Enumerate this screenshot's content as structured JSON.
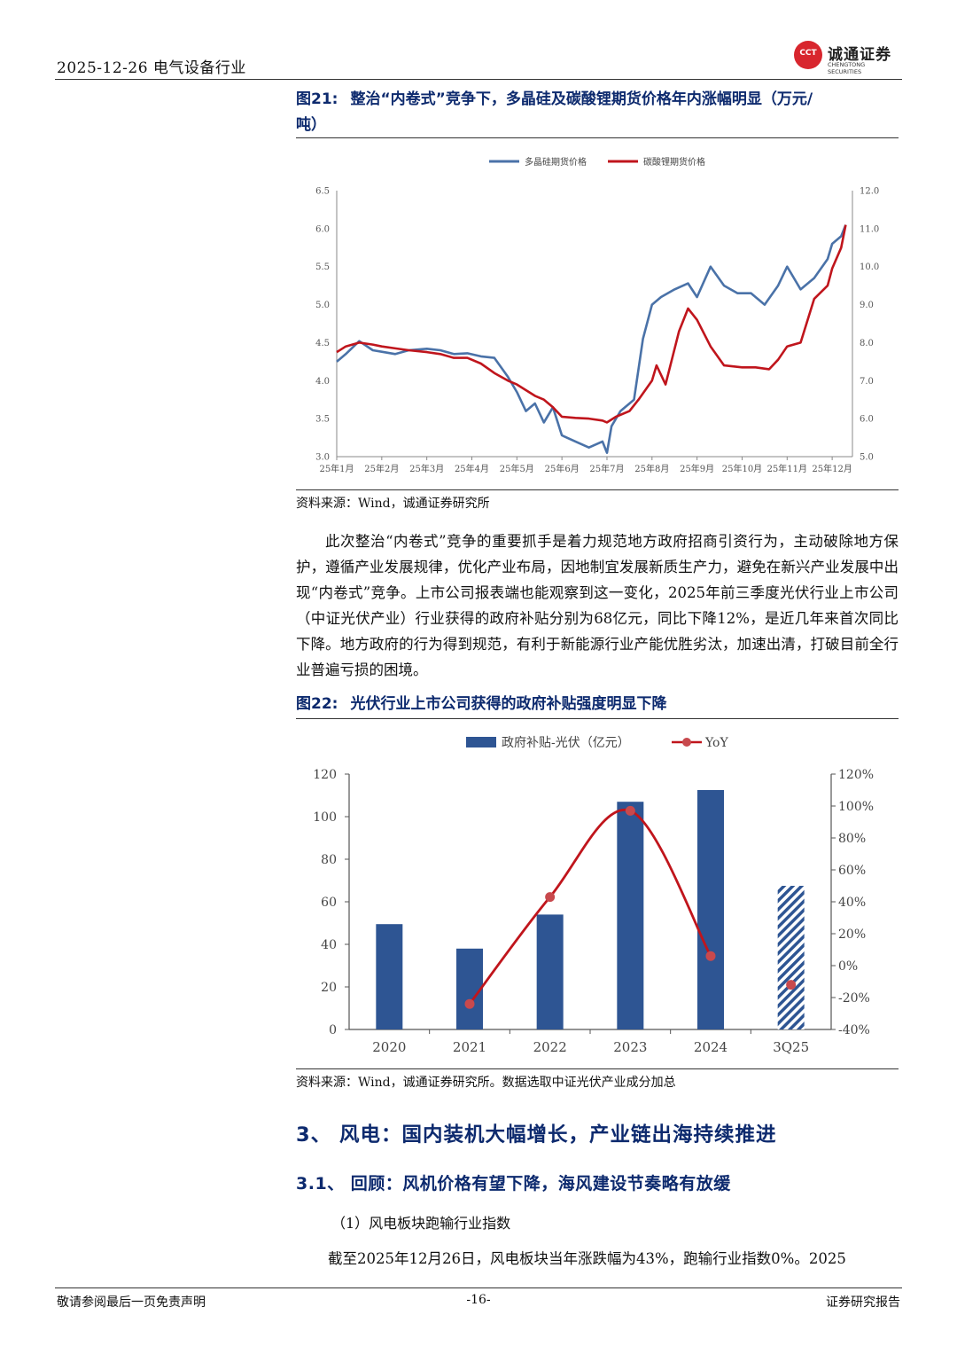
{
  "header": {
    "date_industry": "2025-12-26  电气设备行业",
    "logo_name": "诚通证券",
    "logo_mark": "CCT",
    "logo_en": "CHENGTONG SECURITIES"
  },
  "figure21": {
    "number": "图21:",
    "title_line1": "整治“内卷式”竞争下，多晶硅及碳酸锂期货价格年内涨幅明显（万元/",
    "title_line2": "吨）",
    "source": "资料来源：Wind，诚通证券研究所"
  },
  "figure22": {
    "number": "图22:",
    "title": "光伏行业上市公司获得的政府补贴强度明显下降",
    "source": "资料来源：Wind，诚通证券研究所。数据选取中证光伏产业成分加总"
  },
  "paragraph": "此次整治“内卷式”竞争的重要抓手是着力规范地方政府招商引资行为，主动破除地方保护，遵循产业发展规律，优化产业布局，因地制宜发展新质生产力，避免在新兴产业发展中出现“内卷式”竞争。上市公司报表端也能观察到这一变化，2025年前三季度光伏行业上市公司（中证光伏产业）行业获得的政府补贴分别为68亿元，同比下降12%，是近几年来首次同比下降。地方政府的行为得到规范，有利于新能源行业产能优胜劣汰，加速出清，打破目前全行业普遍亏损的困境。",
  "section3": "3、 风电：国内装机大幅增长，产业链出海持续推进",
  "section31": "3.1、 回顾：风机价格有望下降，海风建设节奏略有放缓",
  "sub1": "（1）风电板块跑输行业指数",
  "para_last": "截至2025年12月26日，风电板块当年涨跌幅为43%，跑输行业指数0%。2025",
  "footer": {
    "left": "敬请参阅最后一页免责声明",
    "page": "-16-",
    "right": "证券研究报告"
  },
  "chart_data": [
    {
      "type": "line",
      "x_tick_labels": [
        "25年1月",
        "25年2月",
        "25年3月",
        "25年4月",
        "25年5月",
        "25年6月",
        "25年7月",
        "25年8月",
        "25年9月",
        "25年10月",
        "25年11月",
        "25年12月"
      ],
      "ylim_left": [
        3.0,
        6.5
      ],
      "ylim_right": [
        5.0,
        12.0
      ],
      "y_ticks_left": [
        "3.0",
        "3.5",
        "4.0",
        "4.5",
        "5.0",
        "5.5",
        "6.0",
        "6.5"
      ],
      "y_ticks_right": [
        "5.0",
        "6.0",
        "7.0",
        "8.0",
        "9.0",
        "10.0",
        "11.0",
        "12.0"
      ],
      "legend_position": "top",
      "series": [
        {
          "name": "多晶硅期货价格",
          "axis": "left",
          "color": "#4a72a8",
          "x": [
            0,
            0.2,
            0.5,
            0.8,
            1.0,
            1.3,
            1.6,
            2.0,
            2.3,
            2.6,
            2.9,
            3.2,
            3.5,
            3.8,
            4.0,
            4.2,
            4.4,
            4.6,
            4.8,
            5.0,
            5.3,
            5.6,
            5.9,
            6.0,
            6.1,
            6.3,
            6.6,
            6.8,
            7.0,
            7.2,
            7.5,
            7.8,
            8.0,
            8.3,
            8.6,
            8.9,
            9.2,
            9.5,
            9.8,
            10.0,
            10.3,
            10.6,
            10.9,
            11.0,
            11.2,
            11.3
          ],
          "y": [
            4.25,
            4.35,
            4.52,
            4.4,
            4.38,
            4.35,
            4.4,
            4.42,
            4.4,
            4.35,
            4.36,
            4.32,
            4.3,
            4.05,
            3.85,
            3.6,
            3.7,
            3.45,
            3.65,
            3.28,
            3.2,
            3.12,
            3.2,
            3.05,
            3.4,
            3.6,
            3.75,
            4.55,
            5.0,
            5.1,
            5.2,
            5.28,
            5.1,
            5.5,
            5.25,
            5.15,
            5.15,
            5.0,
            5.25,
            5.5,
            5.2,
            5.35,
            5.6,
            5.8,
            5.9,
            6.05
          ]
        },
        {
          "name": "碳酸锂期货价格",
          "axis": "right",
          "color": "#c0151c",
          "x": [
            0,
            0.2,
            0.5,
            0.8,
            1.0,
            1.3,
            1.6,
            2.0,
            2.3,
            2.6,
            2.9,
            3.2,
            3.5,
            3.8,
            4.0,
            4.2,
            4.4,
            4.6,
            4.8,
            5.0,
            5.3,
            5.6,
            5.9,
            6.0,
            6.2,
            6.5,
            6.7,
            7.0,
            7.1,
            7.3,
            7.6,
            7.8,
            8.0,
            8.3,
            8.6,
            9.0,
            9.3,
            9.6,
            9.8,
            10.0,
            10.3,
            10.6,
            10.9,
            11.0,
            11.2,
            11.3
          ],
          "y": [
            7.75,
            7.9,
            8.0,
            7.95,
            7.9,
            7.85,
            7.8,
            7.75,
            7.7,
            7.6,
            7.6,
            7.45,
            7.2,
            7.0,
            6.9,
            6.75,
            6.6,
            6.5,
            6.3,
            6.05,
            6.02,
            6.0,
            5.95,
            5.9,
            6.05,
            6.2,
            6.5,
            7.0,
            7.4,
            6.9,
            8.3,
            8.9,
            8.6,
            7.9,
            7.4,
            7.35,
            7.35,
            7.3,
            7.55,
            7.9,
            8.0,
            9.15,
            9.5,
            9.95,
            10.5,
            11.1
          ]
        }
      ]
    },
    {
      "type": "bar",
      "categories": [
        "2020",
        "2021",
        "2022",
        "2023",
        "2024",
        "3Q25"
      ],
      "ylim_left": [
        0,
        120
      ],
      "ylim_right": [
        -40,
        120
      ],
      "y_ticks_left": [
        "0",
        "20",
        "40",
        "60",
        "80",
        "100",
        "120"
      ],
      "y_ticks_right": [
        "-40%",
        "-20%",
        "0%",
        "20%",
        "40%",
        "60%",
        "80%",
        "100%",
        "120%"
      ],
      "legend_position": "top",
      "series": [
        {
          "name": "政府补贴-光伏（亿元）",
          "type": "bar",
          "axis": "left",
          "color": "#2e5593",
          "values": [
            49.5,
            38,
            54,
            107,
            112.5,
            67.5
          ],
          "hatched_last": true
        },
        {
          "name": "YoY",
          "type": "line",
          "axis": "right",
          "color": "#c0151c",
          "values": [
            null,
            -24,
            43,
            97,
            6,
            -12
          ],
          "line_through": [
            "2021",
            "2022",
            "2023",
            "2024"
          ]
        }
      ]
    }
  ]
}
